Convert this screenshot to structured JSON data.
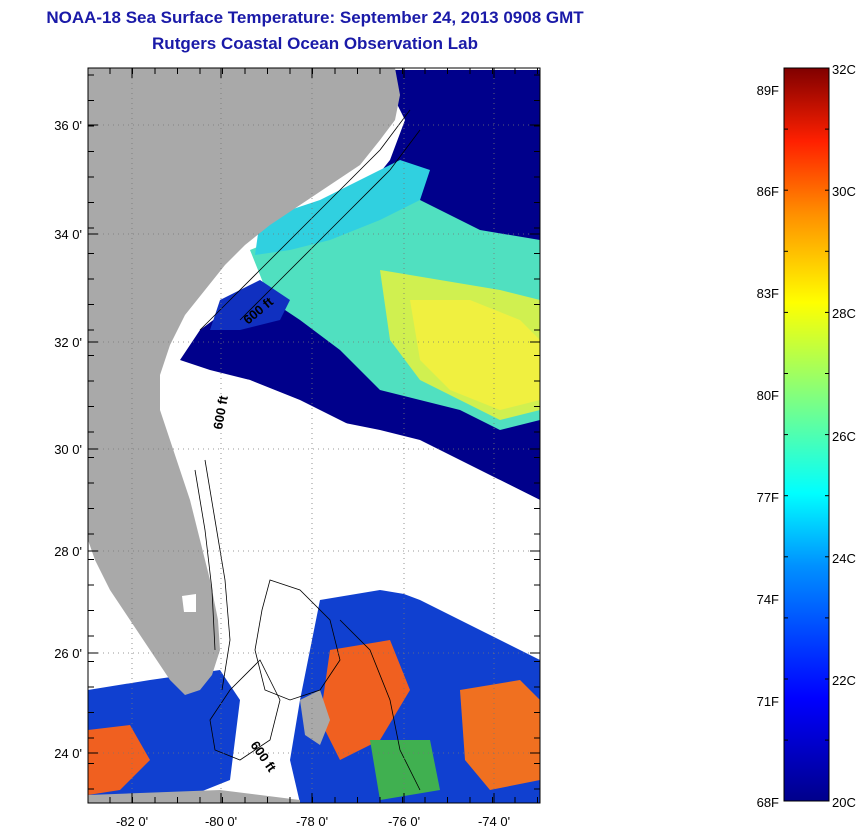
{
  "header": {
    "title": "NOAA-18 Sea Surface Temperature:  September 24, 2013 0908 GMT",
    "subtitle": "Rutgers Coastal Ocean Observation Lab"
  },
  "map": {
    "lat_ticks": [
      "36 0'",
      "34 0'",
      "32 0'",
      "30 0'",
      "28 0'",
      "26 0'",
      "24 0'"
    ],
    "lon_ticks": [
      "-82 0'",
      "-80 0'",
      "-78 0'",
      "-76 0'",
      "-74 0'"
    ],
    "contour_labels": [
      "600 ft",
      "600 ft",
      "600 ft"
    ],
    "colors": {
      "land": "#a9a9a9",
      "cold": "#00008b",
      "cloud": "#ffffff"
    }
  },
  "colorbar": {
    "celsius_labels": [
      "32C",
      "30C",
      "28C",
      "26C",
      "24C",
      "22C",
      "20C"
    ],
    "fahrenheit_labels": [
      "89F",
      "86F",
      "83F",
      "80F",
      "77F",
      "74F",
      "71F",
      "68F"
    ],
    "range_c": [
      20,
      32
    ]
  }
}
